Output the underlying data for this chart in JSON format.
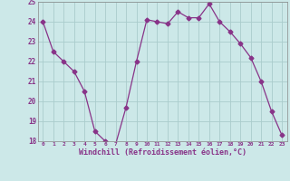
{
  "x": [
    0,
    1,
    2,
    3,
    4,
    5,
    6,
    7,
    8,
    9,
    10,
    11,
    12,
    13,
    14,
    15,
    16,
    17,
    18,
    19,
    20,
    21,
    22,
    23
  ],
  "y": [
    24.0,
    22.5,
    22.0,
    21.5,
    20.5,
    18.5,
    18.0,
    17.85,
    19.7,
    22.0,
    24.1,
    24.0,
    23.9,
    24.5,
    24.2,
    24.2,
    24.9,
    24.0,
    23.5,
    22.9,
    22.2,
    21.0,
    19.5,
    18.3
  ],
  "line_color": "#883388",
  "marker": "D",
  "marker_size": 2.5,
  "bg_color": "#cce8e8",
  "grid_color": "#aacccc",
  "xlabel": "Windchill (Refroidissement éolien,°C)",
  "xlabel_color": "#883388",
  "tick_color": "#883388",
  "ylim": [
    18,
    25
  ],
  "xlim": [
    -0.5,
    23.5
  ],
  "yticks": [
    18,
    19,
    20,
    21,
    22,
    23,
    24,
    25
  ],
  "xticks": [
    0,
    1,
    2,
    3,
    4,
    5,
    6,
    7,
    8,
    9,
    10,
    11,
    12,
    13,
    14,
    15,
    16,
    17,
    18,
    19,
    20,
    21,
    22,
    23
  ],
  "xtick_labels": [
    "0",
    "1",
    "2",
    "3",
    "4",
    "5",
    "6",
    "7",
    "8",
    "9",
    "10",
    "11",
    "12",
    "13",
    "14",
    "15",
    "16",
    "17",
    "18",
    "19",
    "20",
    "21",
    "22",
    "23"
  ]
}
